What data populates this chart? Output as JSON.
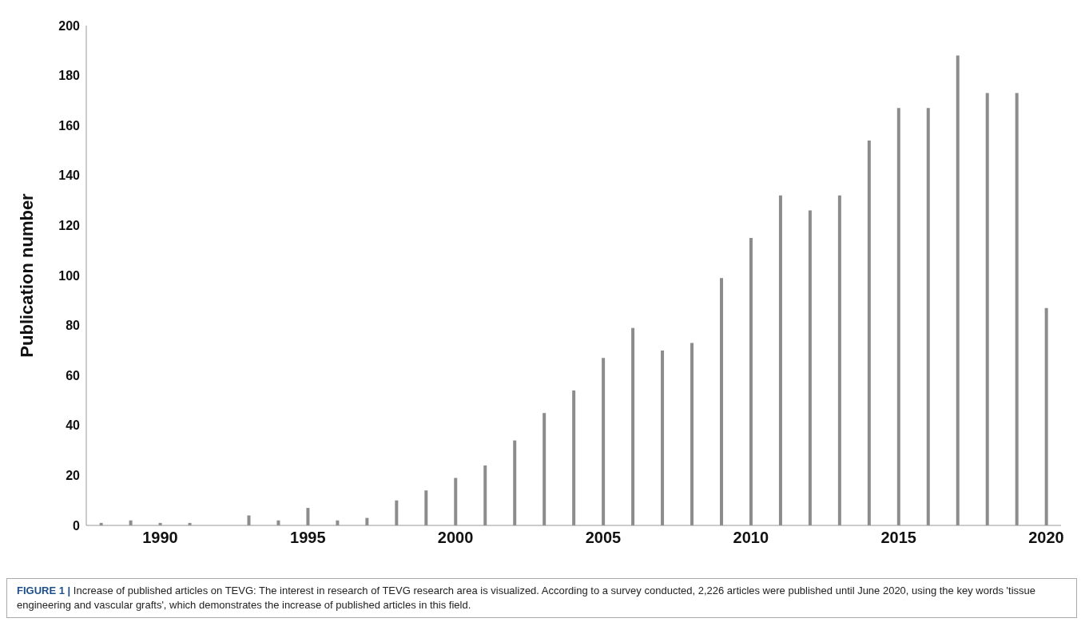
{
  "chart_data": {
    "type": "bar",
    "ylabel": "Publication number",
    "categories": [
      null,
      null,
      "1990",
      null,
      null,
      null,
      null,
      "1995",
      null,
      null,
      null,
      null,
      "2000",
      null,
      null,
      null,
      null,
      "2005",
      null,
      null,
      null,
      null,
      "2010",
      null,
      null,
      null,
      null,
      "2015",
      null,
      null,
      null,
      null,
      "2020"
    ],
    "values": [
      1,
      2,
      1,
      1,
      0,
      4,
      2,
      7,
      2,
      3,
      10,
      14,
      19,
      24,
      34,
      45,
      54,
      67,
      79,
      70,
      73,
      99,
      115,
      132,
      126,
      132,
      154,
      167,
      167,
      188,
      173,
      173,
      87
    ],
    "color": "#8c8c8c",
    "ylim": [
      0,
      200
    ],
    "yticks": [
      0,
      20,
      40,
      60,
      80,
      100,
      120,
      140,
      160,
      180,
      200
    ],
    "grid": false,
    "annotations": [
      "FIGURE 1 |",
      "Increase of published articles on TEVG: The interest in research of TEVG research area is visualized. According to a survey conducted, 2,226 articles were published until June 2020, using the key words 'tissue engineering and vascular grafts', which demonstrates the increase of published articles in this field."
    ]
  }
}
